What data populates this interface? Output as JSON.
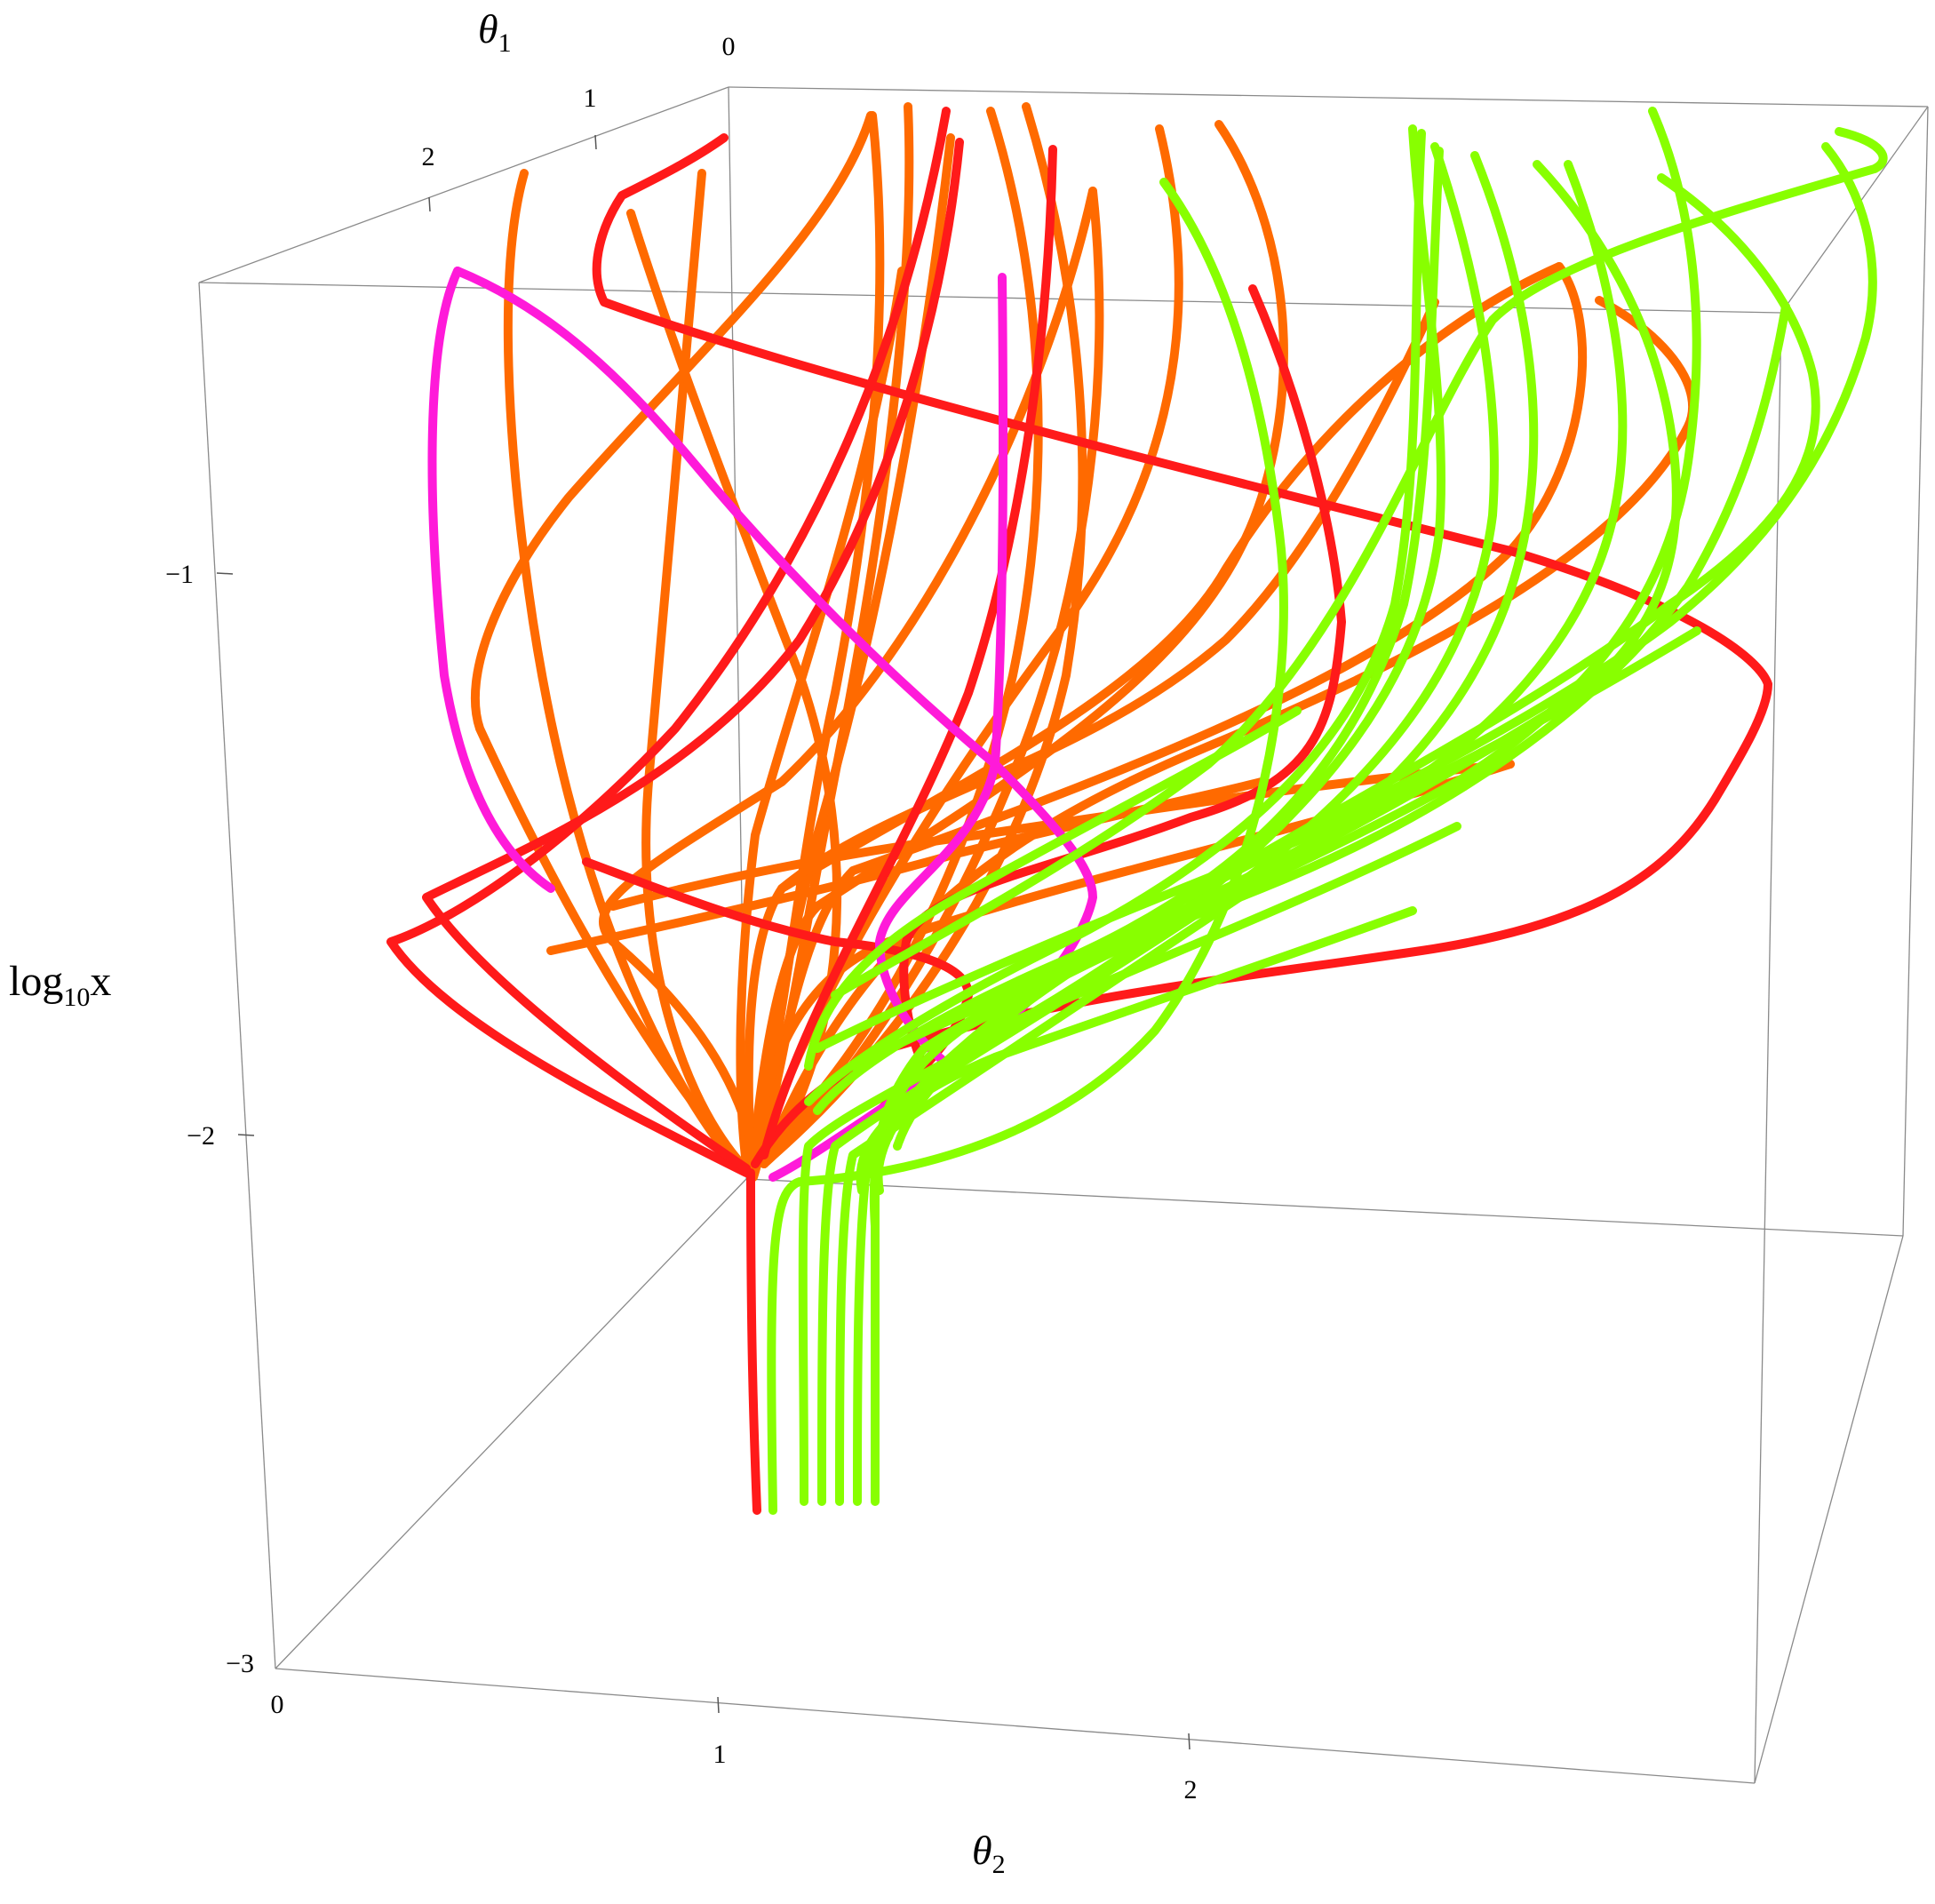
{
  "chart_data": {
    "type": "line3d",
    "axes": {
      "theta1": {
        "label": "θ",
        "sub": "1",
        "ticks": [
          "0",
          "1",
          "2"
        ]
      },
      "theta2": {
        "label": "θ",
        "sub": "2",
        "ticks": [
          "0",
          "1",
          "2"
        ]
      },
      "log10x": {
        "label": "log",
        "sub": "10",
        "tail": "x",
        "ticks": [
          "−1",
          "−2",
          "−3"
        ]
      }
    },
    "series_colors": {
      "red": "#ff1a1a",
      "orange": "#ff6a00",
      "magenta": "#ff1ad9",
      "green": "#88ff00"
    }
  }
}
